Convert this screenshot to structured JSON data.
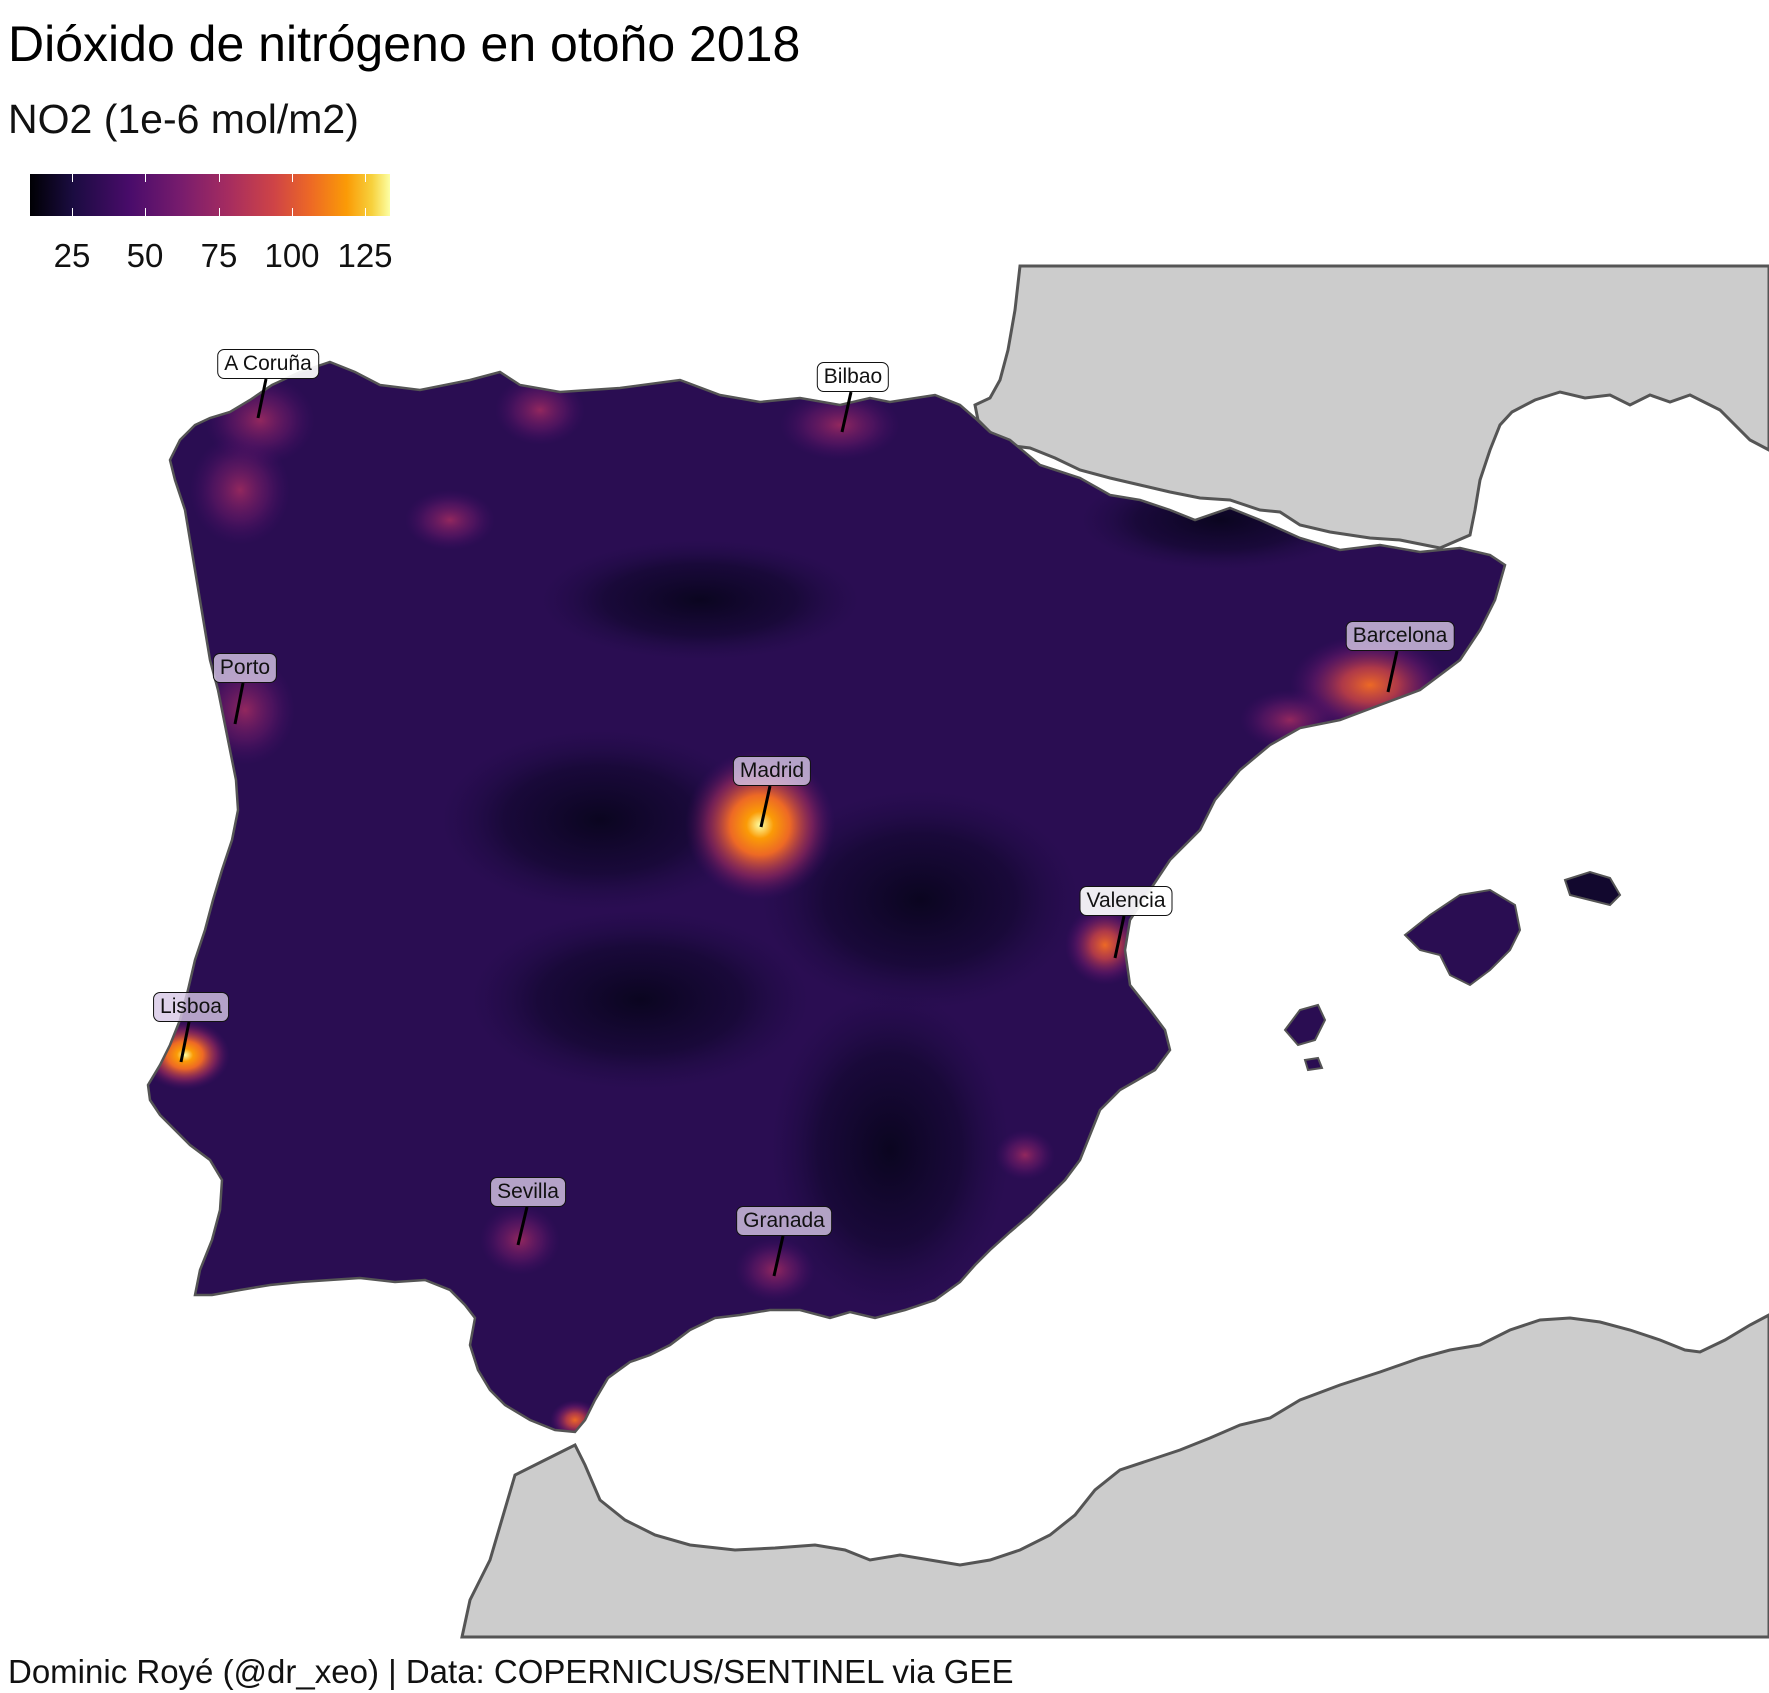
{
  "title": "Dióxido de nitrógeno en otoño 2018",
  "subtitle": "NO2 (1e-6 mol/m2)",
  "legend": {
    "labels": [
      "25",
      "50",
      "75",
      "100",
      "125"
    ],
    "values": [
      25,
      50,
      75,
      100,
      125
    ],
    "palette": [
      "#000004",
      "#4a0c6b",
      "#a52c60",
      "#ed6925",
      "#fcffa4"
    ]
  },
  "colors": {
    "land_outside": "#cccccc",
    "coastline": "#555555",
    "sea": "#ffffff",
    "base_no2": "#2a0d52"
  },
  "cities": [
    {
      "name": "A Coruña",
      "no2": 60
    },
    {
      "name": "Bilbao",
      "no2": 55
    },
    {
      "name": "Porto",
      "no2": 60
    },
    {
      "name": "Barcelona",
      "no2": 110
    },
    {
      "name": "Madrid",
      "no2": 130
    },
    {
      "name": "Valencia",
      "no2": 80
    },
    {
      "name": "Lisboa",
      "no2": 95
    },
    {
      "name": "Sevilla",
      "no2": 60
    },
    {
      "name": "Granada",
      "no2": 60
    }
  ],
  "caption": "Dominic Royé (@dr_xeo) | Data: COPERNICUS/SENTINEL via GEE"
}
